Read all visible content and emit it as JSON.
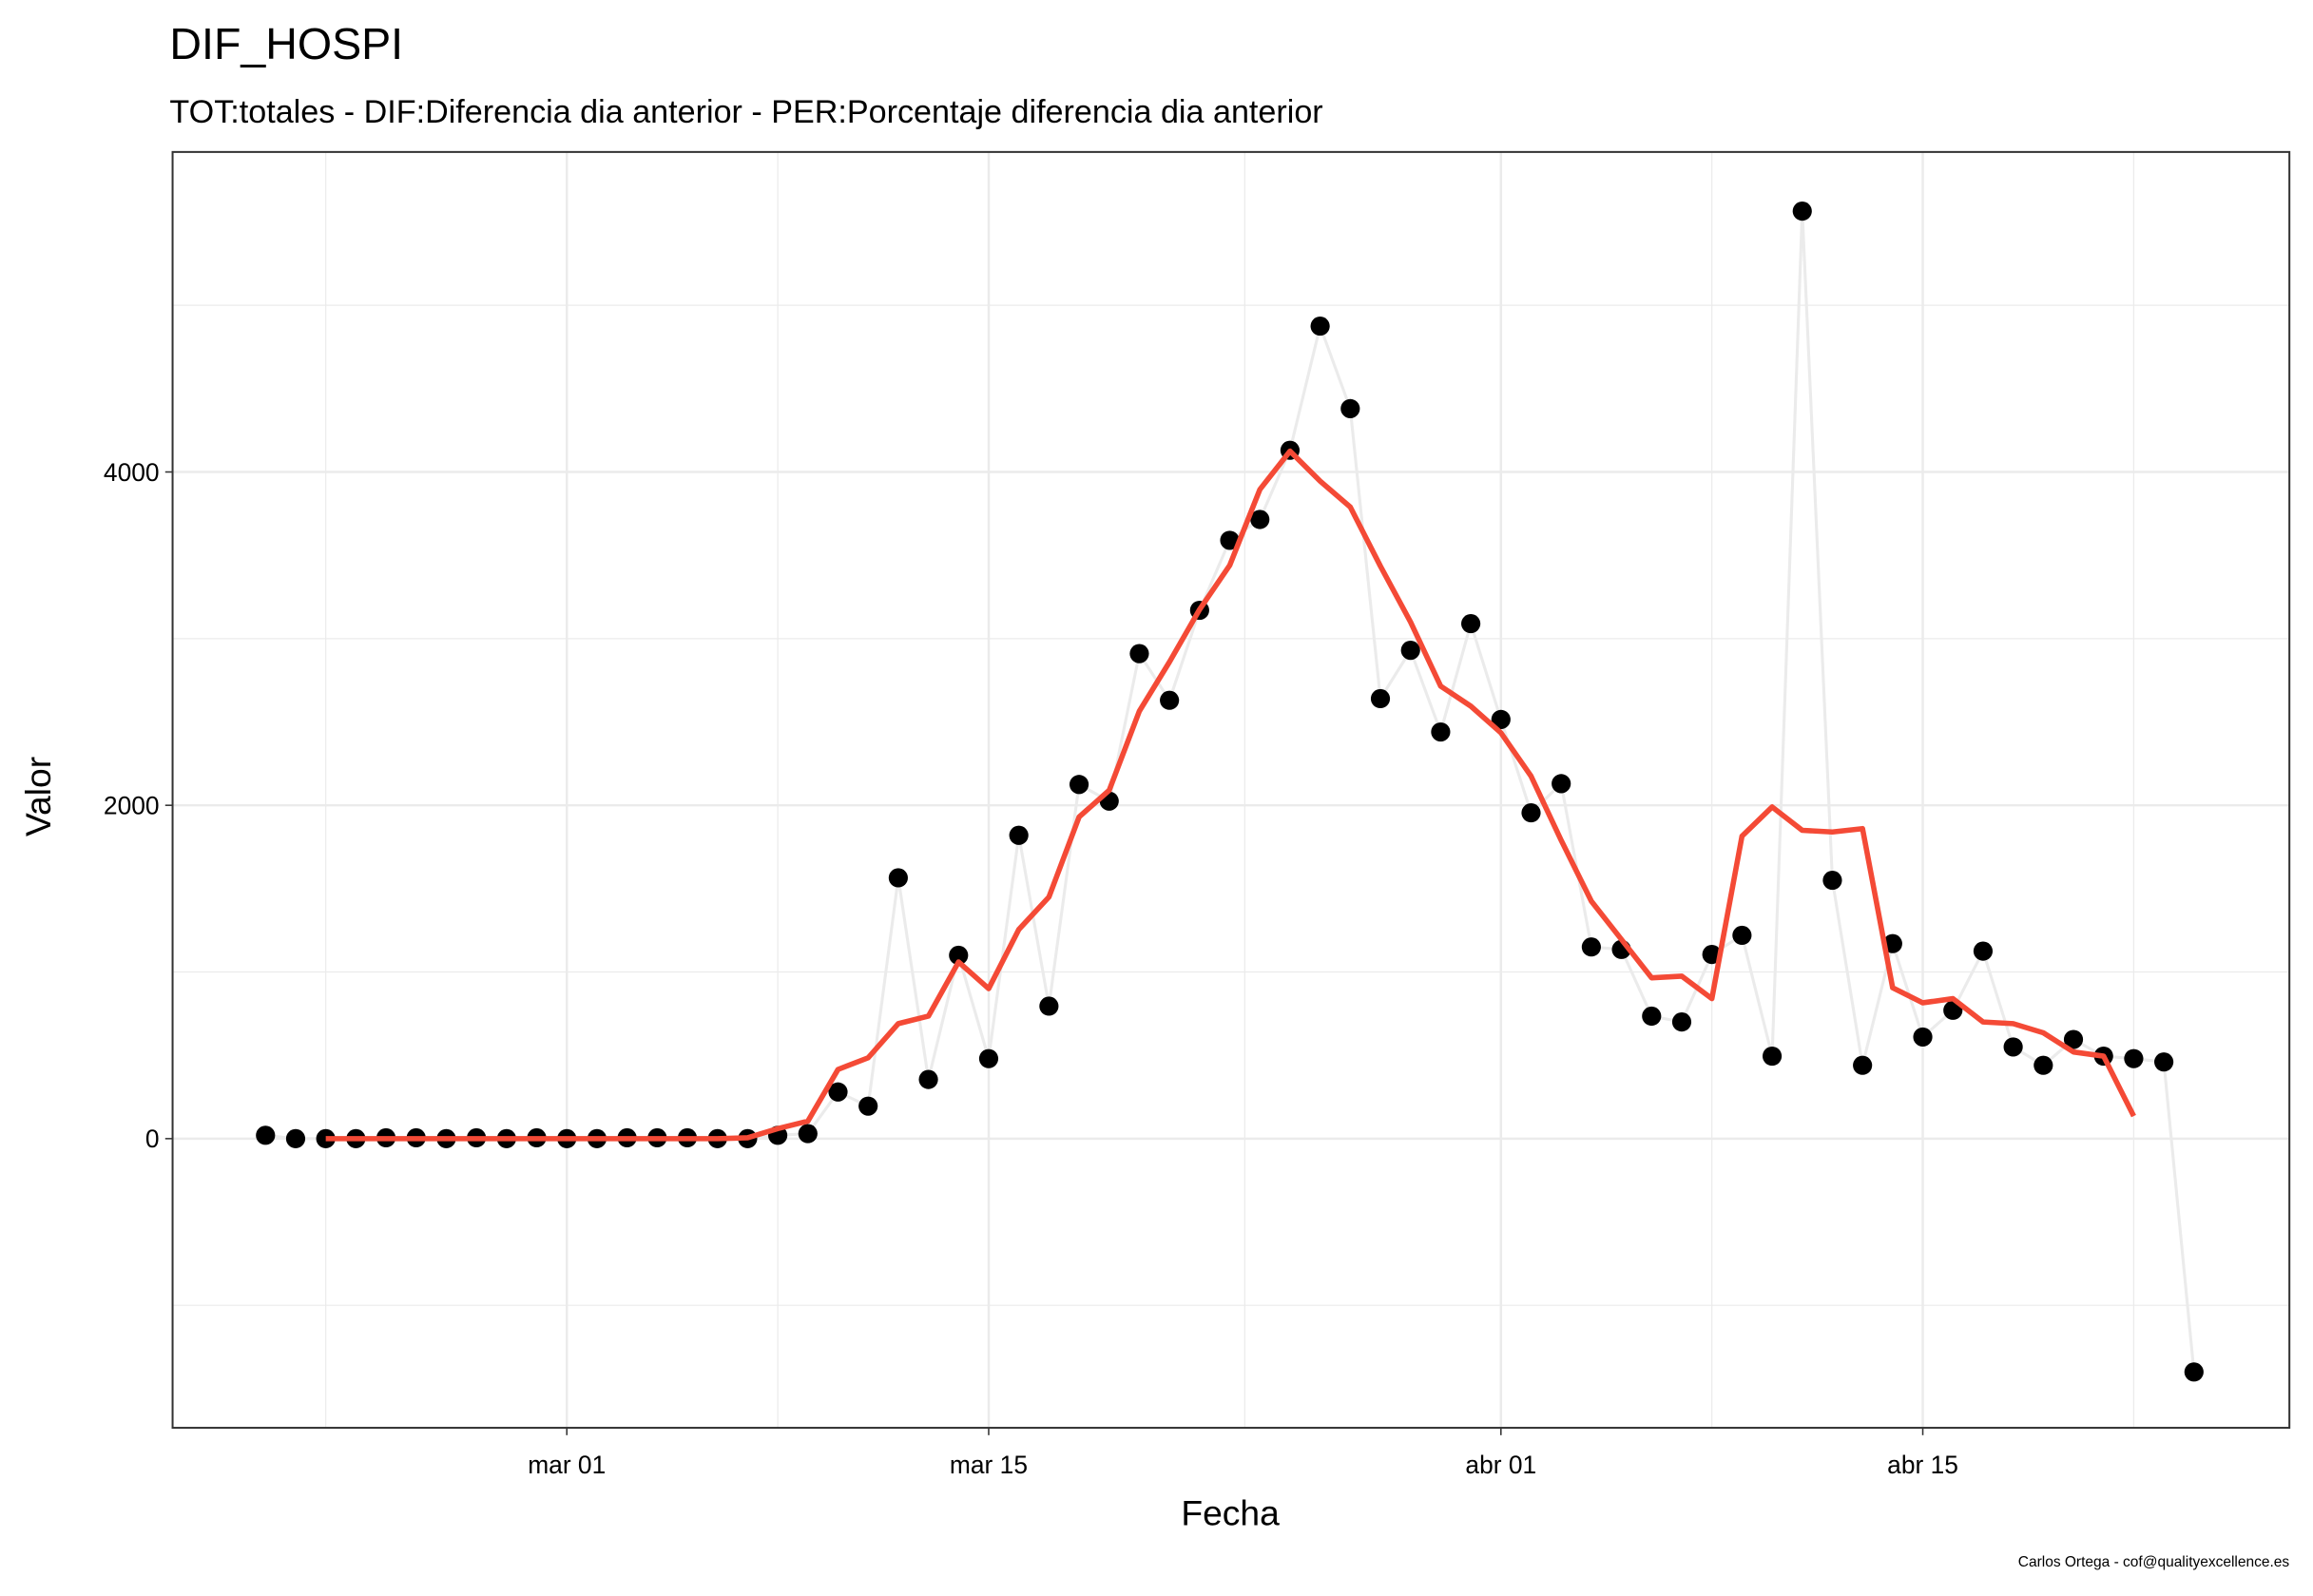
{
  "chart_data": {
    "type": "line",
    "title": "DIF_HOSPI",
    "subtitle": "TOT:totales - DIF:Diferencia dia anterior - PER:Porcentaje diferencia dia anterior",
    "x_label": "Fecha",
    "y_label": "Valor",
    "caption": "Carlos Ortega - cof@qualityexcellence.es",
    "x": [
      "02-20",
      "02-21",
      "02-22",
      "02-23",
      "02-24",
      "02-25",
      "02-26",
      "02-27",
      "02-28",
      "02-29",
      "03-01",
      "03-02",
      "03-03",
      "03-04",
      "03-05",
      "03-06",
      "03-07",
      "03-08",
      "03-09",
      "03-10",
      "03-11",
      "03-12",
      "03-13",
      "03-14",
      "03-15",
      "03-16",
      "03-17",
      "03-18",
      "03-19",
      "03-20",
      "03-21",
      "03-22",
      "03-23",
      "03-24",
      "03-25",
      "03-26",
      "03-27",
      "03-28",
      "03-29",
      "03-30",
      "03-31",
      "04-01",
      "04-02",
      "04-03",
      "04-04",
      "04-05",
      "04-06",
      "04-07",
      "04-08",
      "04-09",
      "04-10",
      "04-11",
      "04-12",
      "04-13",
      "04-14",
      "04-15",
      "04-16",
      "04-17",
      "04-18",
      "04-19",
      "04-20",
      "04-21",
      "04-22",
      "04-23",
      "04-24"
    ],
    "series": [
      {
        "color": "#ebebeb",
        "marker_color": "#000000",
        "markers": true,
        "values": [
          20,
          0,
          0,
          0,
          5,
          5,
          0,
          5,
          0,
          5,
          0,
          0,
          5,
          5,
          5,
          0,
          0,
          20,
          30,
          280,
          195,
          1565,
          355,
          1100,
          480,
          1820,
          795,
          2125,
          2025,
          2910,
          2630,
          3170,
          3590,
          3715,
          4130,
          4875,
          4380,
          2640,
          2930,
          2440,
          3090,
          2515,
          1955,
          2130,
          1150,
          1135,
          735,
          700,
          1105,
          1220,
          495,
          5565,
          1550,
          440,
          1170,
          610,
          770,
          1125,
          550,
          440,
          595,
          495,
          480,
          460,
          -1400
        ]
      },
      {
        "color": "#f44a36",
        "markers": false,
        "values": [
          null,
          null,
          0,
          0,
          0,
          0,
          0,
          0,
          0,
          0,
          0,
          0,
          0,
          0,
          0,
          0,
          5,
          60,
          105,
          415,
          485,
          690,
          735,
          1060,
          900,
          1255,
          1450,
          1930,
          2090,
          2565,
          2860,
          3175,
          3440,
          3895,
          4125,
          3945,
          3790,
          3435,
          3100,
          2715,
          2595,
          2435,
          2175,
          1790,
          1425,
          1195,
          965,
          975,
          840,
          1815,
          1990,
          1850,
          1840,
          1860,
          905,
          815,
          840,
          700,
          690,
          635,
          520,
          495,
          135,
          null,
          null
        ]
      }
    ],
    "xlim": [
      "02-16 22:00",
      "04-27 04:00"
    ],
    "xticks": [
      {
        "value": "03-01",
        "label": "mar 01"
      },
      {
        "value": "03-15",
        "label": "mar 15"
      },
      {
        "value": "04-01",
        "label": "abr 01"
      },
      {
        "value": "04-15",
        "label": "abr 15"
      }
    ],
    "xminor": [
      "02-22",
      "03-08",
      "03-23 12:00",
      "04-08",
      "04-22"
    ],
    "ylim": [
      -1735,
      5920
    ],
    "yticks": [
      0,
      2000,
      4000
    ],
    "yminor": [
      -1000,
      1000,
      3000,
      5000
    ],
    "grid": true
  }
}
